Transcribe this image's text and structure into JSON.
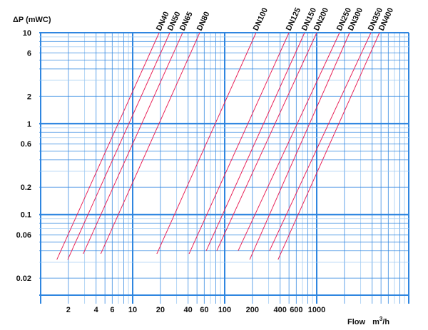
{
  "chart_data": {
    "type": "line",
    "title": "",
    "xlabel": "Flow",
    "xunit_base": "m",
    "xunit_sup": "3",
    "xunit_tail": "/h",
    "ylabel": "ΔP (mWC)",
    "xscale": "log",
    "yscale": "log",
    "xlim": [
      1,
      10000
    ],
    "ylim": [
      0.013,
      10
    ],
    "grid": true,
    "legend": "labels at top end of each line",
    "x_tick_labels": [
      {
        "value": 2,
        "label": "2"
      },
      {
        "value": 4,
        "label": "4"
      },
      {
        "value": 6,
        "label": "6"
      },
      {
        "value": 10,
        "label": "10"
      },
      {
        "value": 20,
        "label": "20"
      },
      {
        "value": 40,
        "label": "40"
      },
      {
        "value": 60,
        "label": "60"
      },
      {
        "value": 100,
        "label": "100"
      },
      {
        "value": 200,
        "label": "200"
      },
      {
        "value": 400,
        "label": "400"
      },
      {
        "value": 600,
        "label": "600"
      },
      {
        "value": 1000,
        "label": "1000"
      }
    ],
    "y_tick_labels": [
      {
        "value": 10,
        "label": "10"
      },
      {
        "value": 6,
        "label": "6"
      },
      {
        "value": 2,
        "label": "2"
      },
      {
        "value": 1,
        "label": "1"
      },
      {
        "value": 0.6,
        "label": "0.6"
      },
      {
        "value": 0.2,
        "label": "0.2"
      },
      {
        "value": 0.1,
        "label": "0.1"
      },
      {
        "value": 0.06,
        "label": "0.06"
      },
      {
        "value": 0.02,
        "label": "0.02"
      }
    ],
    "series": [
      {
        "name": "DN40",
        "x": [
          1.5,
          19.4
        ],
        "y": [
          0.032,
          10
        ]
      },
      {
        "name": "DN50",
        "x": [
          1.97,
          25.3
        ],
        "y": [
          0.032,
          10
        ]
      },
      {
        "name": "DN65",
        "x": [
          2.9,
          34.9
        ],
        "y": [
          0.037,
          10
        ]
      },
      {
        "name": "DN80",
        "x": [
          4.5,
          53.5
        ],
        "y": [
          0.037,
          10
        ]
      },
      {
        "name": "DN100",
        "x": [
          18.3,
          219
        ],
        "y": [
          0.037,
          10
        ]
      },
      {
        "name": "DN125",
        "x": [
          41,
          499
        ],
        "y": [
          0.037,
          10
        ]
      },
      {
        "name": "DN150",
        "x": [
          63,
          738
        ],
        "y": [
          0.04,
          10
        ]
      },
      {
        "name": "DN200",
        "x": [
          82,
          1000
        ],
        "y": [
          0.04,
          10
        ]
      },
      {
        "name": "DN250",
        "x": [
          140,
          1770
        ],
        "y": [
          0.04,
          10
        ]
      },
      {
        "name": "DN300",
        "x": [
          187,
          2275
        ],
        "y": [
          0.032,
          10
        ]
      },
      {
        "name": "DN350",
        "x": [
          307,
          3880
        ],
        "y": [
          0.04,
          10
        ]
      },
      {
        "name": "DN400",
        "x": [
          380,
          4810
        ],
        "y": [
          0.032,
          10
        ]
      }
    ]
  },
  "colors": {
    "grid_major": "#2f86e0",
    "grid_minor": "#9cc8f2",
    "series": "#e8245a"
  }
}
